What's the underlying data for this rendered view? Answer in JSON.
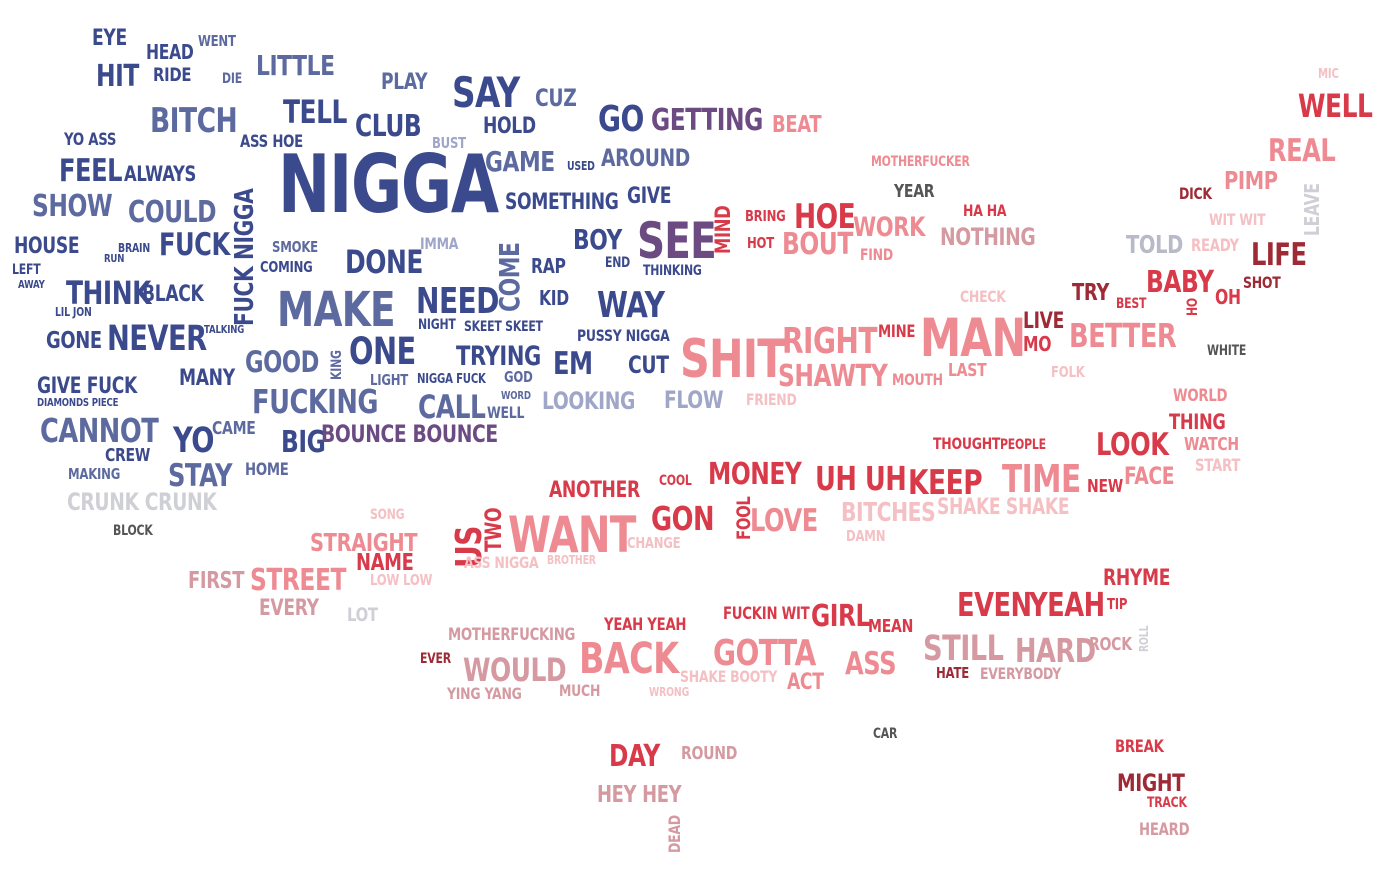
{
  "palette": {
    "navy": "#3b4a8c",
    "slate": "#5d6a9f",
    "lavender": "#9fa6c8",
    "gray": "#b8bac8",
    "purple": "#6c4a82",
    "red": "#d83a4a",
    "pink": "#ee8b92",
    "dustypink": "#d59aa1",
    "lightpink": "#f4c0c4",
    "maroon": "#9e2a36",
    "darkgray": "#555555",
    "lightgray": "#cfcfd6"
  },
  "words": [
    {
      "text": "EYE",
      "c": "navy"
    },
    {
      "text": "HEAD",
      "c": "navy"
    },
    {
      "text": "WENT",
      "c": "slate"
    },
    {
      "text": "HIT",
      "c": "navy"
    },
    {
      "text": "RIDE",
      "c": "navy"
    },
    {
      "text": "DIE",
      "c": "slate"
    },
    {
      "text": "LITTLE",
      "c": "slate"
    },
    {
      "text": "PLAY",
      "c": "slate"
    },
    {
      "text": "SAY",
      "c": "navy"
    },
    {
      "text": "CUZ",
      "c": "slate"
    },
    {
      "text": "BITCH",
      "c": "slate"
    },
    {
      "text": "TELL",
      "c": "navy"
    },
    {
      "text": "CLUB",
      "c": "navy"
    },
    {
      "text": "HOLD",
      "c": "navy"
    },
    {
      "text": "GO",
      "c": "navy"
    },
    {
      "text": "GETTING",
      "c": "purple"
    },
    {
      "text": "BEAT",
      "c": "pink"
    },
    {
      "text": "YO ASS",
      "c": "navy"
    },
    {
      "text": "ASS HOE",
      "c": "navy"
    },
    {
      "text": "BUST",
      "c": "lavender"
    },
    {
      "text": "GAME",
      "c": "slate"
    },
    {
      "text": "USED",
      "c": "navy"
    },
    {
      "text": "AROUND",
      "c": "slate"
    },
    {
      "text": "FEEL",
      "c": "navy"
    },
    {
      "text": "ALWAYS",
      "c": "navy"
    },
    {
      "text": "NIGGA",
      "c": "navy"
    },
    {
      "text": "SHOW",
      "c": "slate"
    },
    {
      "text": "COULD",
      "c": "slate"
    },
    {
      "text": "SOMETHING",
      "c": "navy"
    },
    {
      "text": "GIVE",
      "c": "navy"
    },
    {
      "text": "HOUSE",
      "c": "navy"
    },
    {
      "text": "BRAIN",
      "c": "navy"
    },
    {
      "text": "RUN",
      "c": "navy"
    },
    {
      "text": "FUCK",
      "c": "navy"
    },
    {
      "text": "FUCK NIGGA",
      "c": "navy"
    },
    {
      "text": "SMOKE",
      "c": "slate"
    },
    {
      "text": "COMING",
      "c": "navy"
    },
    {
      "text": "IMMA",
      "c": "lavender"
    },
    {
      "text": "DONE",
      "c": "navy"
    },
    {
      "text": "COME",
      "c": "slate"
    },
    {
      "text": "RAP",
      "c": "navy"
    },
    {
      "text": "BOY",
      "c": "navy"
    },
    {
      "text": "END",
      "c": "navy"
    },
    {
      "text": "SEE",
      "c": "purple"
    },
    {
      "text": "THINKING",
      "c": "navy"
    },
    {
      "text": "MIND",
      "c": "red"
    },
    {
      "text": "LEFT",
      "c": "navy"
    },
    {
      "text": "AWAY",
      "c": "navy"
    },
    {
      "text": "THINK",
      "c": "navy"
    },
    {
      "text": "BLACK",
      "c": "navy"
    },
    {
      "text": "MAKE",
      "c": "slate"
    },
    {
      "text": "NEED",
      "c": "navy"
    },
    {
      "text": "KID",
      "c": "navy"
    },
    {
      "text": "WAY",
      "c": "navy"
    },
    {
      "text": "LIL JON",
      "c": "navy"
    },
    {
      "text": "GONE",
      "c": "navy"
    },
    {
      "text": "NEVER",
      "c": "navy"
    },
    {
      "text": "TALKING",
      "c": "navy"
    },
    {
      "text": "NIGHT",
      "c": "navy"
    },
    {
      "text": "SKEET SKEET",
      "c": "navy"
    },
    {
      "text": "PUSSY NIGGA",
      "c": "navy"
    },
    {
      "text": "ONE",
      "c": "navy"
    },
    {
      "text": "TRYING",
      "c": "navy"
    },
    {
      "text": "EM",
      "c": "navy"
    },
    {
      "text": "CUT",
      "c": "navy"
    },
    {
      "text": "GOOD",
      "c": "slate"
    },
    {
      "text": "KING",
      "c": "slate"
    },
    {
      "text": "MANY",
      "c": "navy"
    },
    {
      "text": "LIGHT",
      "c": "slate"
    },
    {
      "text": "NIGGA FUCK",
      "c": "navy"
    },
    {
      "text": "GOD",
      "c": "slate"
    },
    {
      "text": "GIVE FUCK",
      "c": "navy"
    },
    {
      "text": "DIAMONDS PIECE",
      "c": "navy"
    },
    {
      "text": "FUCKING",
      "c": "slate"
    },
    {
      "text": "CALL",
      "c": "slate"
    },
    {
      "text": "WORD",
      "c": "slate"
    },
    {
      "text": "WELL",
      "c": "slate"
    },
    {
      "text": "LOOKING",
      "c": "lavender"
    },
    {
      "text": "FLOW",
      "c": "lavender"
    },
    {
      "text": "CANNOT",
      "c": "slate"
    },
    {
      "text": "YO",
      "c": "navy"
    },
    {
      "text": "CAME",
      "c": "slate"
    },
    {
      "text": "BIG",
      "c": "navy"
    },
    {
      "text": "BOUNCE BOUNCE",
      "c": "purple"
    },
    {
      "text": "CREW",
      "c": "navy"
    },
    {
      "text": "MAKING",
      "c": "slate"
    },
    {
      "text": "STAY",
      "c": "slate"
    },
    {
      "text": "HOME",
      "c": "slate"
    },
    {
      "text": "CRUNK CRUNK",
      "c": "lightgray"
    },
    {
      "text": "BLOCK",
      "c": "darkgray"
    },
    {
      "text": "SHIT",
      "c": "pink"
    },
    {
      "text": "RIGHT",
      "c": "pink"
    },
    {
      "text": "MINE",
      "c": "red"
    },
    {
      "text": "SHAWTY",
      "c": "pink"
    },
    {
      "text": "MOUTH",
      "c": "pink"
    },
    {
      "text": "FRIEND",
      "c": "lightpink"
    },
    {
      "text": "MAN",
      "c": "pink"
    },
    {
      "text": "LAST",
      "c": "pink"
    },
    {
      "text": "LIVE",
      "c": "maroon"
    },
    {
      "text": "MO",
      "c": "red"
    },
    {
      "text": "BETTER",
      "c": "pink"
    },
    {
      "text": "FOLK",
      "c": "lightpink"
    },
    {
      "text": "MOTHERFUCKER",
      "c": "pink"
    },
    {
      "text": "YEAR",
      "c": "darkgray"
    },
    {
      "text": "BRING",
      "c": "red"
    },
    {
      "text": "HOE",
      "c": "red"
    },
    {
      "text": "WORK",
      "c": "pink"
    },
    {
      "text": "HA HA",
      "c": "red"
    },
    {
      "text": "HOT",
      "c": "red"
    },
    {
      "text": "BOUT",
      "c": "pink"
    },
    {
      "text": "FIND",
      "c": "pink"
    },
    {
      "text": "NOTHING",
      "c": "dustypink"
    },
    {
      "text": "CHECK",
      "c": "lightpink"
    },
    {
      "text": "TRY",
      "c": "maroon"
    },
    {
      "text": "BEST",
      "c": "red"
    },
    {
      "text": "BABY",
      "c": "red"
    },
    {
      "text": "OH",
      "c": "red"
    },
    {
      "text": "HO",
      "c": "red"
    },
    {
      "text": "SHOT",
      "c": "maroon"
    },
    {
      "text": "LIFE",
      "c": "maroon"
    },
    {
      "text": "WHITE",
      "c": "darkgray"
    },
    {
      "text": "TOLD",
      "c": "gray"
    },
    {
      "text": "READY",
      "c": "lightpink"
    },
    {
      "text": "DICK",
      "c": "maroon"
    },
    {
      "text": "PIMP",
      "c": "pink"
    },
    {
      "text": "LEAVE",
      "c": "lightgray"
    },
    {
      "text": "WIT WIT",
      "c": "lightpink"
    },
    {
      "text": "REAL",
      "c": "pink"
    },
    {
      "text": "WELL",
      "c": "red"
    },
    {
      "text": "MIC",
      "c": "lightpink"
    },
    {
      "text": "ANOTHER",
      "c": "red"
    },
    {
      "text": "COOL",
      "c": "red"
    },
    {
      "text": "MONEY",
      "c": "red"
    },
    {
      "text": "UH UH",
      "c": "red"
    },
    {
      "text": "KEEP",
      "c": "red"
    },
    {
      "text": "TIME",
      "c": "pink"
    },
    {
      "text": "NEW",
      "c": "red"
    },
    {
      "text": "FACE",
      "c": "pink"
    },
    {
      "text": "LOOK",
      "c": "red"
    },
    {
      "text": "THOUGHT",
      "c": "red"
    },
    {
      "text": "PEOPLE",
      "c": "red"
    },
    {
      "text": "WORLD",
      "c": "pink"
    },
    {
      "text": "THING",
      "c": "red"
    },
    {
      "text": "WATCH",
      "c": "pink"
    },
    {
      "text": "START",
      "c": "lightpink"
    },
    {
      "text": "SONG",
      "c": "lightpink"
    },
    {
      "text": "US",
      "c": "red"
    },
    {
      "text": "TWO",
      "c": "red"
    },
    {
      "text": "WANT",
      "c": "pink"
    },
    {
      "text": "CHANGE",
      "c": "lightpink"
    },
    {
      "text": "GON",
      "c": "red"
    },
    {
      "text": "FOOL",
      "c": "red"
    },
    {
      "text": "LOVE",
      "c": "pink"
    },
    {
      "text": "BITCHES",
      "c": "lightpink"
    },
    {
      "text": "SHAKE SHAKE",
      "c": "lightpink"
    },
    {
      "text": "DAMN",
      "c": "lightpink"
    },
    {
      "text": "STRAIGHT",
      "c": "pink"
    },
    {
      "text": "NAME",
      "c": "red"
    },
    {
      "text": "ASS NIGGA",
      "c": "lightpink"
    },
    {
      "text": "BROTHER",
      "c": "lightpink"
    },
    {
      "text": "FIRST",
      "c": "dustypink"
    },
    {
      "text": "STREET",
      "c": "pink"
    },
    {
      "text": "LOW LOW",
      "c": "lightpink"
    },
    {
      "text": "EVERY",
      "c": "dustypink"
    },
    {
      "text": "LOT",
      "c": "lightgray"
    },
    {
      "text": "EVEN",
      "c": "red"
    },
    {
      "text": "YEAH",
      "c": "red"
    },
    {
      "text": "TIP",
      "c": "red"
    },
    {
      "text": "RHYME",
      "c": "red"
    },
    {
      "text": "MOTHERFUCKING",
      "c": "dustypink"
    },
    {
      "text": "YEAH YEAH",
      "c": "red"
    },
    {
      "text": "FUCKIN WIT",
      "c": "red"
    },
    {
      "text": "GIRL",
      "c": "red"
    },
    {
      "text": "MEAN",
      "c": "red"
    },
    {
      "text": "STILL",
      "c": "dustypink"
    },
    {
      "text": "HARD",
      "c": "dustypink"
    },
    {
      "text": "ROCK",
      "c": "dustypink"
    },
    {
      "text": "ROLL",
      "c": "lightgray"
    },
    {
      "text": "EVER",
      "c": "maroon"
    },
    {
      "text": "WOULD",
      "c": "dustypink"
    },
    {
      "text": "BACK",
      "c": "pink"
    },
    {
      "text": "GOTTA",
      "c": "pink"
    },
    {
      "text": "ASS",
      "c": "pink"
    },
    {
      "text": "HATE",
      "c": "maroon"
    },
    {
      "text": "EVERYBODY",
      "c": "dustypink"
    },
    {
      "text": "YING YANG",
      "c": "dustypink"
    },
    {
      "text": "MUCH",
      "c": "dustypink"
    },
    {
      "text": "WRONG",
      "c": "lightpink"
    },
    {
      "text": "SHAKE BOOTY",
      "c": "lightpink"
    },
    {
      "text": "ACT",
      "c": "pink"
    },
    {
      "text": "CAR",
      "c": "darkgray"
    },
    {
      "text": "BREAK",
      "c": "red"
    },
    {
      "text": "DAY",
      "c": "red"
    },
    {
      "text": "ROUND",
      "c": "dustypink"
    },
    {
      "text": "MIGHT",
      "c": "maroon"
    },
    {
      "text": "TRACK",
      "c": "red"
    },
    {
      "text": "HEY HEY",
      "c": "dustypink"
    },
    {
      "text": "DEAD",
      "c": "dustypink"
    },
    {
      "text": "HEARD",
      "c": "dustypink"
    }
  ]
}
